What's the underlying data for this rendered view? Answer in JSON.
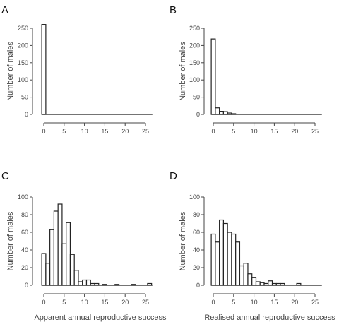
{
  "chart_data": [
    {
      "type": "bar",
      "panel": "A",
      "ylabel": "Number of males",
      "xlabel": "",
      "xlim": [
        -1,
        27
      ],
      "ylim": [
        0,
        260
      ],
      "x_ticks": [
        "0",
        "5",
        "10",
        "15",
        "20",
        "25"
      ],
      "y_ticks": [
        "0",
        "50",
        "100",
        "150",
        "200",
        "250"
      ],
      "bin_width": 1,
      "bins": [
        {
          "x": 0,
          "value": 261
        }
      ]
    },
    {
      "type": "bar",
      "panel": "B",
      "ylabel": "Number of males",
      "xlabel": "",
      "xlim": [
        -1,
        27
      ],
      "ylim": [
        0,
        260
      ],
      "x_ticks": [
        "0",
        "5",
        "10",
        "15",
        "20",
        "25"
      ],
      "y_ticks": [
        "0",
        "50",
        "100",
        "150",
        "200",
        "250"
      ],
      "bin_width": 1,
      "bins": [
        {
          "x": 0,
          "value": 219
        },
        {
          "x": 1,
          "value": 19
        },
        {
          "x": 2,
          "value": 9
        },
        {
          "x": 3,
          "value": 8
        },
        {
          "x": 4,
          "value": 4
        },
        {
          "x": 5,
          "value": 2
        }
      ]
    },
    {
      "type": "bar",
      "panel": "C",
      "ylabel": "Number of males",
      "xlabel": "Apparent annual reproductive success",
      "xlim": [
        -1,
        27
      ],
      "ylim": [
        0,
        100
      ],
      "x_ticks": [
        "0",
        "5",
        "10",
        "15",
        "20",
        "25"
      ],
      "y_ticks": [
        "0",
        "20",
        "40",
        "60",
        "80",
        "100"
      ],
      "bin_width": 1,
      "bins": [
        {
          "x": 0,
          "value": 36
        },
        {
          "x": 1,
          "value": 25
        },
        {
          "x": 2,
          "value": 63
        },
        {
          "x": 3,
          "value": 84
        },
        {
          "x": 4,
          "value": 92
        },
        {
          "x": 5,
          "value": 47
        },
        {
          "x": 6,
          "value": 71
        },
        {
          "x": 7,
          "value": 35
        },
        {
          "x": 8,
          "value": 17
        },
        {
          "x": 9,
          "value": 4
        },
        {
          "x": 10,
          "value": 6
        },
        {
          "x": 11,
          "value": 6
        },
        {
          "x": 12,
          "value": 2
        },
        {
          "x": 13,
          "value": 2
        },
        {
          "x": 15,
          "value": 1
        },
        {
          "x": 18,
          "value": 1
        },
        {
          "x": 22,
          "value": 1
        },
        {
          "x": 26,
          "value": 2
        }
      ]
    },
    {
      "type": "bar",
      "panel": "D",
      "ylabel": "Number of males",
      "xlabel": "Realised annual reproductive success",
      "xlim": [
        -1,
        27
      ],
      "ylim": [
        0,
        100
      ],
      "x_ticks": [
        "0",
        "5",
        "10",
        "15",
        "20",
        "25"
      ],
      "y_ticks": [
        "0",
        "20",
        "40",
        "60",
        "80",
        "100"
      ],
      "bin_width": 1,
      "bins": [
        {
          "x": 0,
          "value": 58
        },
        {
          "x": 1,
          "value": 49
        },
        {
          "x": 2,
          "value": 74
        },
        {
          "x": 3,
          "value": 70
        },
        {
          "x": 4,
          "value": 60
        },
        {
          "x": 5,
          "value": 58
        },
        {
          "x": 6,
          "value": 49
        },
        {
          "x": 7,
          "value": 22
        },
        {
          "x": 8,
          "value": 25
        },
        {
          "x": 9,
          "value": 13
        },
        {
          "x": 10,
          "value": 9
        },
        {
          "x": 11,
          "value": 4
        },
        {
          "x": 12,
          "value": 3
        },
        {
          "x": 13,
          "value": 2
        },
        {
          "x": 14,
          "value": 5
        },
        {
          "x": 15,
          "value": 2
        },
        {
          "x": 16,
          "value": 2
        },
        {
          "x": 17,
          "value": 2
        },
        {
          "x": 21,
          "value": 2
        }
      ]
    }
  ]
}
